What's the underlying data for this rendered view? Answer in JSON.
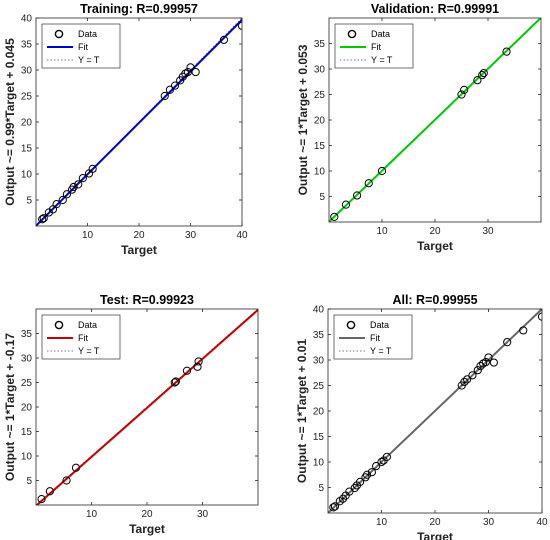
{
  "chart_data": [
    {
      "type": "scatter",
      "title": "Training: R=0.99957",
      "xlabel": "Target",
      "ylabel": "Output ~= 0.99*Target + 0.045",
      "xlim": [
        0,
        40
      ],
      "ylim": [
        0,
        40
      ],
      "xticks": [
        10,
        20,
        30,
        40
      ],
      "yticks": [
        5,
        10,
        15,
        20,
        25,
        30,
        35,
        40
      ],
      "fit": {
        "slope": 0.99,
        "intercept": 0.045,
        "x_range": [
          0,
          40
        ]
      },
      "fit_color": "#0000cc",
      "legend": [
        "Data",
        "Fit",
        "Y = T"
      ],
      "legend_position": "top-left",
      "points": [
        [
          1.2,
          1.3
        ],
        [
          1.5,
          1.5
        ],
        [
          2.5,
          2.6
        ],
        [
          3.3,
          3.2
        ],
        [
          4.0,
          4.2
        ],
        [
          5.2,
          5.0
        ],
        [
          6.0,
          6.1
        ],
        [
          7.0,
          7.0
        ],
        [
          7.3,
          7.5
        ],
        [
          8.2,
          8.0
        ],
        [
          9.1,
          9.2
        ],
        [
          10.3,
          10.1
        ],
        [
          11.0,
          11.0
        ],
        [
          25.0,
          25.0
        ],
        [
          26.0,
          26.2
        ],
        [
          27.0,
          27.0
        ],
        [
          28.0,
          28.0
        ],
        [
          28.5,
          28.7
        ],
        [
          29.0,
          29.3
        ],
        [
          29.5,
          29.6
        ],
        [
          30.0,
          30.5
        ],
        [
          31.0,
          29.6
        ],
        [
          36.5,
          35.8
        ],
        [
          40.0,
          38.5
        ]
      ]
    },
    {
      "type": "scatter",
      "title": "Validation: R=0.99991",
      "xlabel": "Target",
      "ylabel": "Output ~= 1*Target + 0.053",
      "xlim": [
        0,
        40
      ],
      "ylim": [
        0,
        40
      ],
      "xticks": [
        10,
        20,
        30
      ],
      "yticks": [
        5,
        10,
        15,
        20,
        25,
        30,
        35
      ],
      "fit": {
        "slope": 1,
        "intercept": 0.053,
        "x_range": [
          0,
          40
        ]
      },
      "fit_color": "#00c800",
      "legend": [
        "Data",
        "Fit",
        "Y = T"
      ],
      "legend_position": "top-left",
      "points": [
        [
          1.0,
          1.0
        ],
        [
          3.2,
          3.4
        ],
        [
          5.3,
          5.2
        ],
        [
          7.5,
          7.6
        ],
        [
          10.0,
          10.0
        ],
        [
          25.0,
          25.0
        ],
        [
          25.5,
          25.9
        ],
        [
          28.0,
          27.8
        ],
        [
          28.9,
          28.8
        ],
        [
          29.2,
          29.2
        ],
        [
          33.5,
          33.4
        ]
      ]
    },
    {
      "type": "scatter",
      "title": "Test: R=0.99923",
      "xlabel": "Target",
      "ylabel": "Output ~= 1*Target + -0.17",
      "xlim": [
        0,
        40
      ],
      "ylim": [
        0,
        40
      ],
      "xticks": [
        10,
        20,
        30
      ],
      "yticks": [
        5,
        10,
        15,
        20,
        25,
        30,
        35
      ],
      "fit": {
        "slope": 1,
        "intercept": -0.17,
        "x_range": [
          0,
          40
        ]
      },
      "fit_color": "#c80000",
      "legend": [
        "Data",
        "Fit",
        "Y = T"
      ],
      "legend_position": "top-left",
      "points": [
        [
          1.0,
          1.2
        ],
        [
          2.5,
          2.8
        ],
        [
          5.5,
          5.0
        ],
        [
          7.2,
          7.6
        ],
        [
          25.0,
          25.0
        ],
        [
          25.2,
          25.2
        ],
        [
          27.2,
          27.4
        ],
        [
          29.1,
          28.2
        ],
        [
          29.3,
          29.3
        ]
      ]
    },
    {
      "type": "scatter",
      "title": "All: R=0.99955",
      "xlabel": "Target",
      "ylabel": "Output ~= 1*Target + 0.01",
      "xlim": [
        0,
        40
      ],
      "ylim": [
        0,
        40
      ],
      "xticks": [
        10,
        20,
        30,
        40
      ],
      "yticks": [
        5,
        10,
        15,
        20,
        25,
        30,
        35,
        40
      ],
      "fit": {
        "slope": 1,
        "intercept": 0.01,
        "x_range": [
          0,
          40
        ]
      },
      "fit_color": "#666666",
      "legend": [
        "Data",
        "Fit",
        "Y = T"
      ],
      "legend_position": "top-left",
      "points": [
        [
          1.0,
          1.1
        ],
        [
          1.3,
          1.3
        ],
        [
          2.2,
          2.3
        ],
        [
          2.8,
          2.8
        ],
        [
          3.3,
          3.4
        ],
        [
          4.0,
          4.2
        ],
        [
          5.0,
          4.9
        ],
        [
          5.4,
          5.4
        ],
        [
          6.0,
          6.1
        ],
        [
          7.0,
          7.0
        ],
        [
          7.3,
          7.5
        ],
        [
          8.2,
          8.0
        ],
        [
          9.0,
          9.2
        ],
        [
          10.0,
          10.0
        ],
        [
          10.4,
          10.3
        ],
        [
          11.0,
          11.0
        ],
        [
          25.0,
          25.0
        ],
        [
          25.5,
          25.7
        ],
        [
          26.0,
          26.2
        ],
        [
          27.0,
          27.0
        ],
        [
          28.0,
          28.0
        ],
        [
          28.5,
          28.8
        ],
        [
          29.0,
          29.3
        ],
        [
          29.5,
          29.6
        ],
        [
          30.0,
          30.5
        ],
        [
          31.0,
          29.5
        ],
        [
          33.5,
          33.5
        ],
        [
          36.5,
          35.8
        ],
        [
          40.0,
          38.5
        ]
      ]
    }
  ]
}
